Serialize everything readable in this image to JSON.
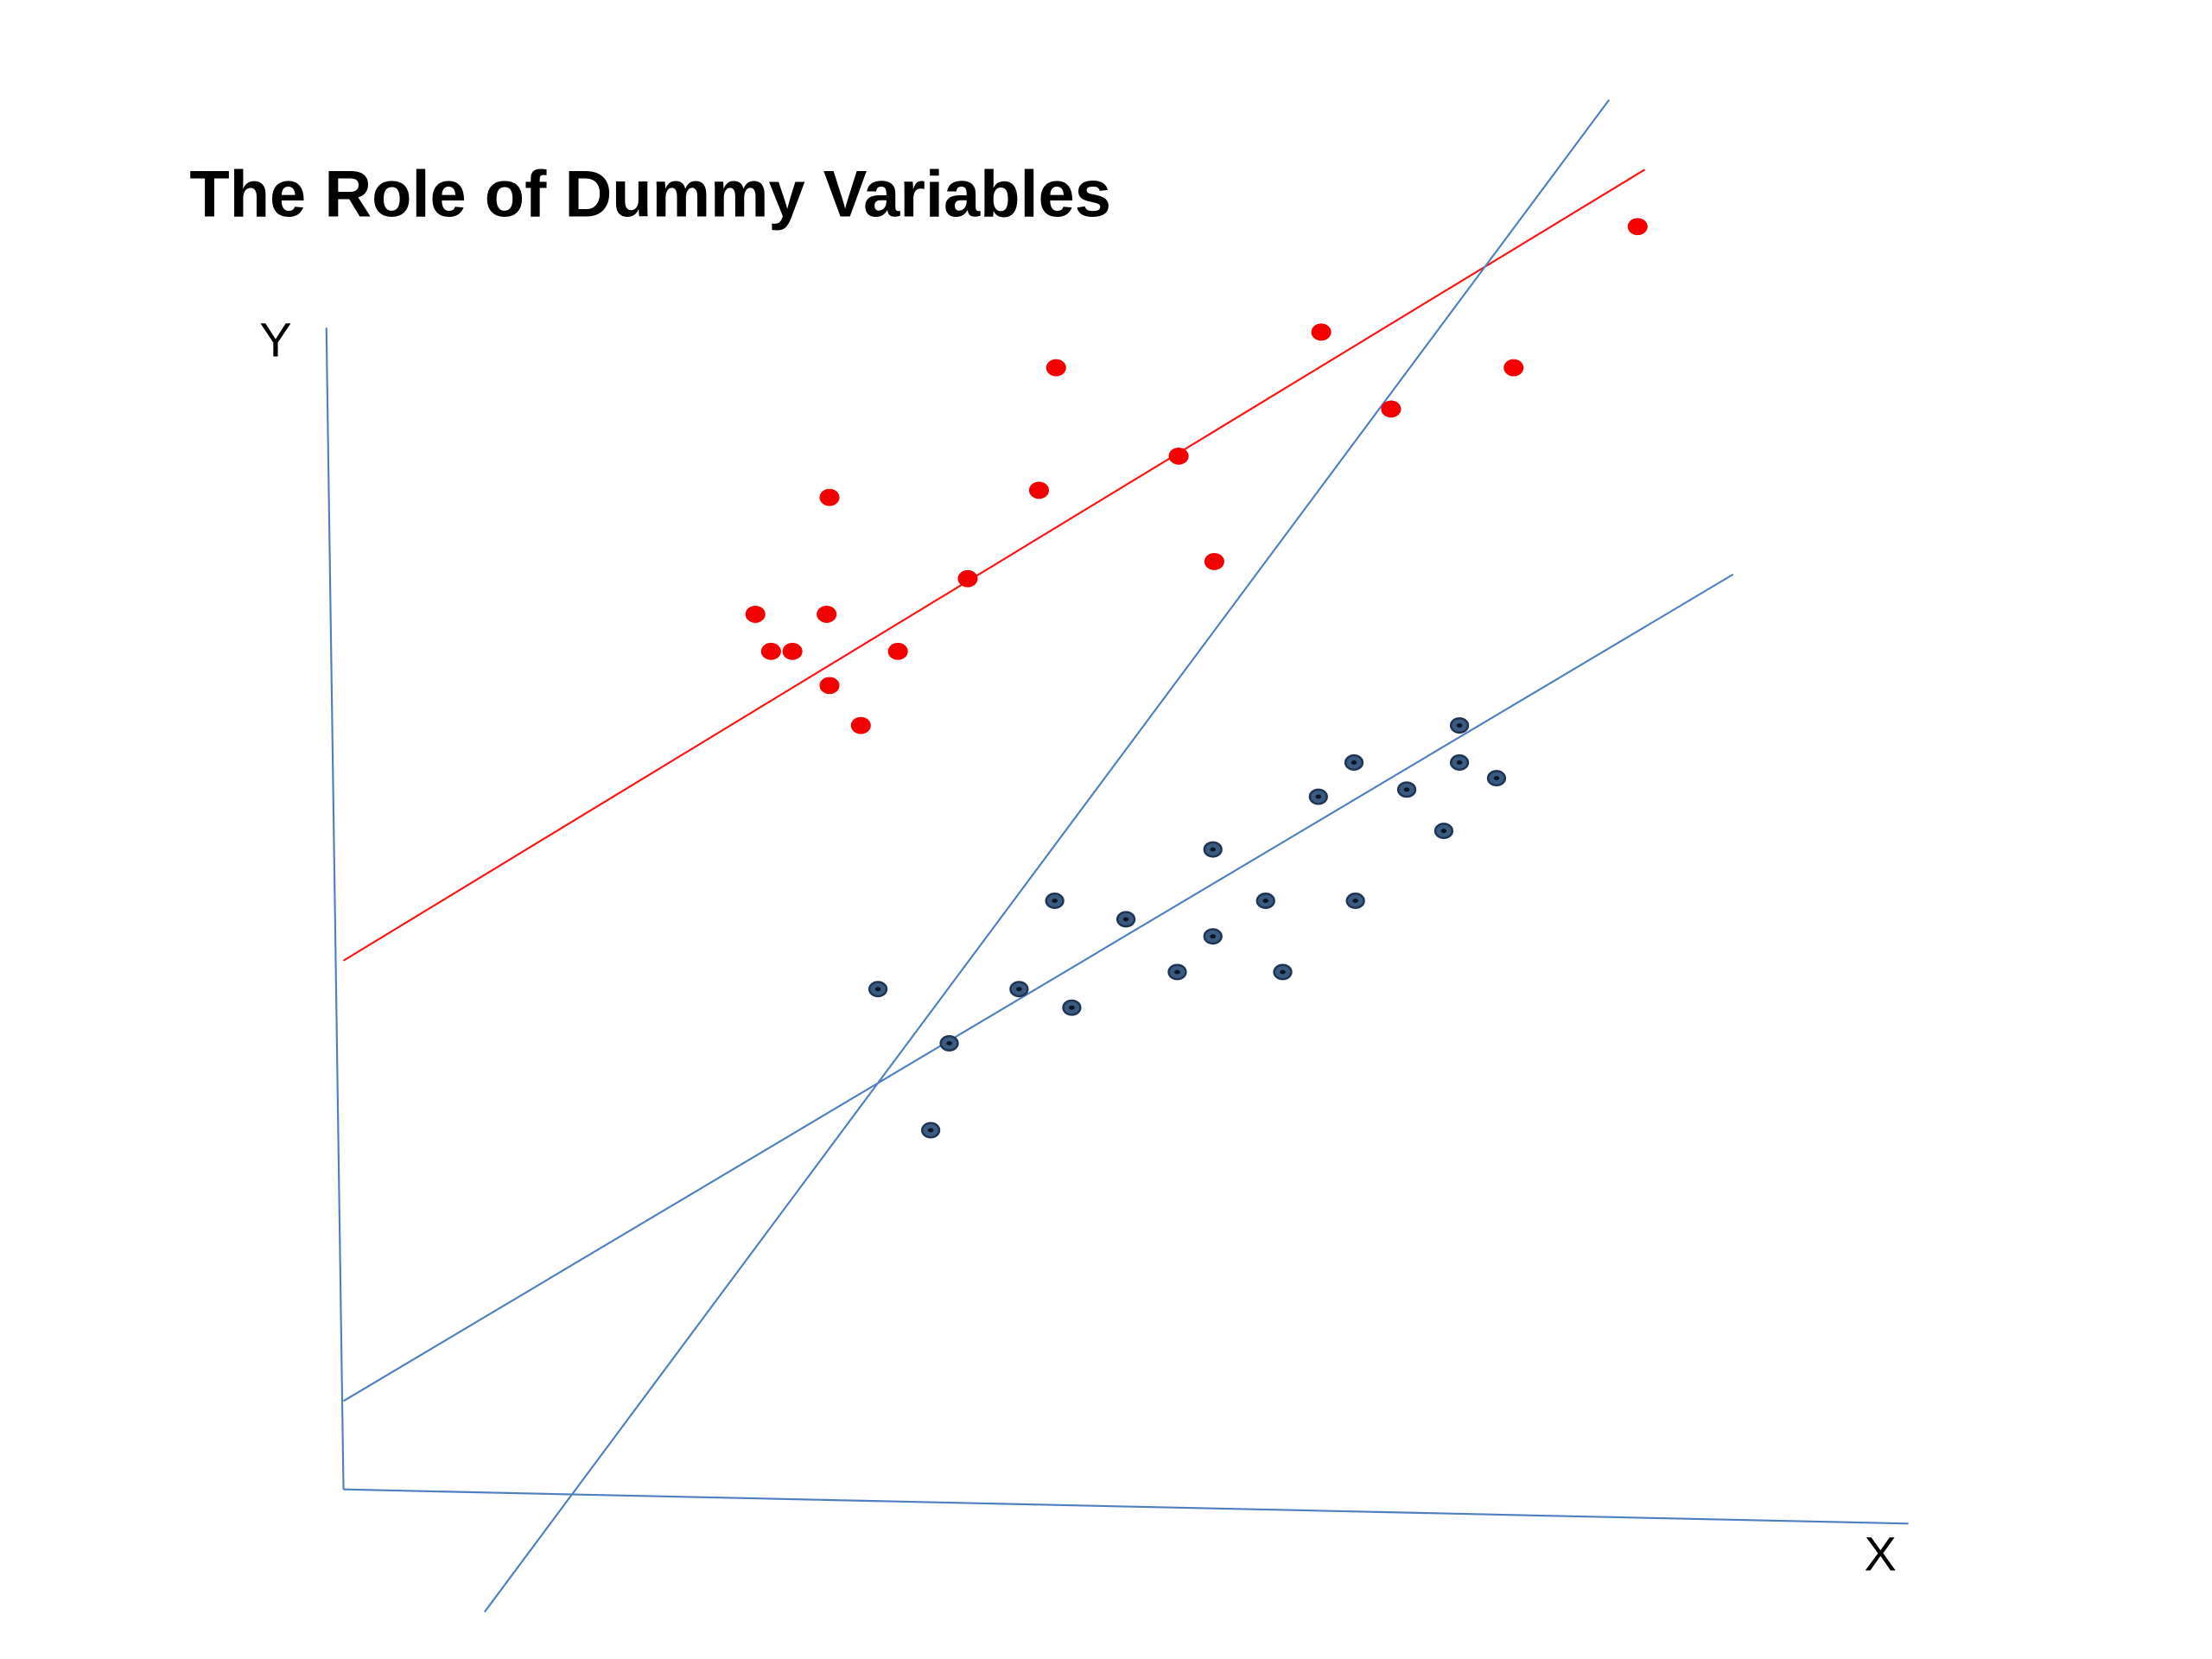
{
  "title": "The Role of Dummy Variables",
  "axes": {
    "y_label": "Y",
    "x_label": "X"
  }
}
